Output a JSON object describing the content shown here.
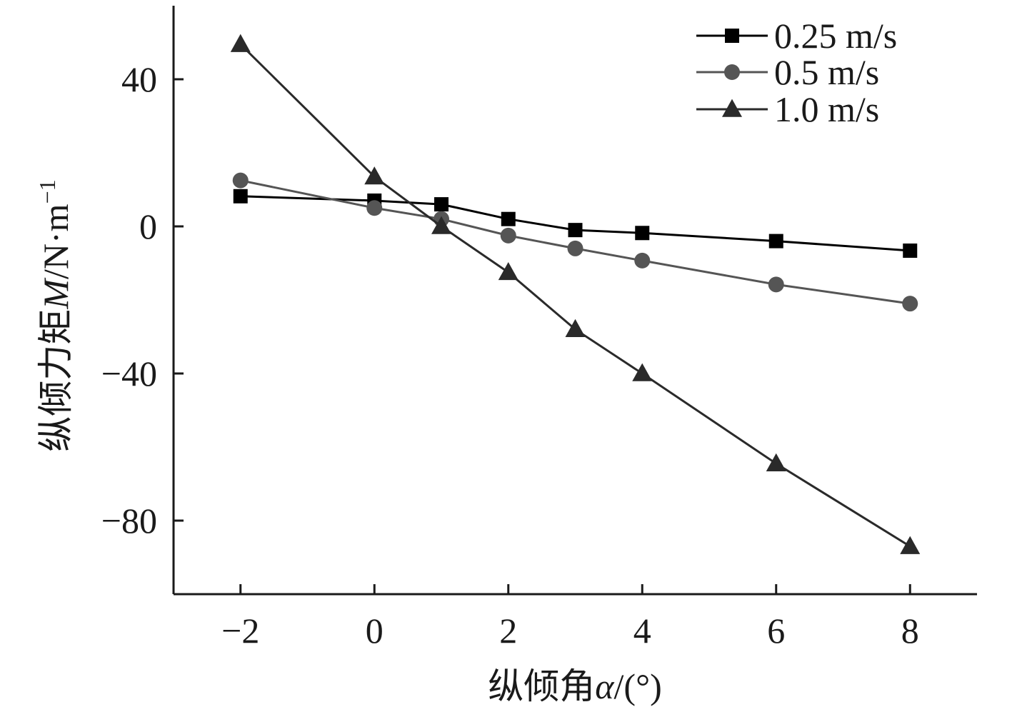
{
  "chart_data": {
    "type": "line",
    "title": "",
    "xlabel_prefix": "纵倾角",
    "xlabel_symbol": "α",
    "xlabel_unit": "/(°)",
    "ylabel_prefix": "纵倾力矩",
    "ylabel_symbol": "M",
    "ylabel_unit": "/N·m",
    "ylabel_exp": "−1",
    "xlim": [
      -3,
      9
    ],
    "ylim": [
      -100,
      60
    ],
    "x_ticks": [
      -2,
      0,
      2,
      4,
      6,
      8
    ],
    "x_tick_labels": [
      "−2",
      "0",
      "2",
      "4",
      "6",
      "8"
    ],
    "y_ticks": [
      40,
      0,
      -40,
      -80
    ],
    "y_tick_labels": [
      "40",
      "0",
      "−40",
      "−80"
    ],
    "grid": false,
    "legend_position": "top-right",
    "series": [
      {
        "name": "0.25 m/s",
        "marker": "square",
        "color": "#000000",
        "x": [
          -2,
          0,
          1,
          2,
          3,
          4,
          6,
          8
        ],
        "y": [
          8.2,
          7.0,
          6.0,
          2.0,
          -1.0,
          -1.8,
          -4.0,
          -6.6
        ]
      },
      {
        "name": "0.5 m/s",
        "marker": "circle",
        "color": "#555555",
        "x": [
          -2,
          0,
          1,
          2,
          3,
          4,
          6,
          8
        ],
        "y": [
          12.5,
          5.0,
          2.0,
          -2.5,
          -6.0,
          -9.3,
          -15.8,
          -21.0
        ]
      },
      {
        "name": "1.0 m/s",
        "marker": "triangle",
        "color": "#2a2a2a",
        "x": [
          -2,
          0,
          1,
          2,
          3,
          4,
          6,
          8
        ],
        "y": [
          49.5,
          13.5,
          0.0,
          -12.5,
          -28.0,
          -40.0,
          -64.5,
          -87.0
        ]
      }
    ]
  }
}
